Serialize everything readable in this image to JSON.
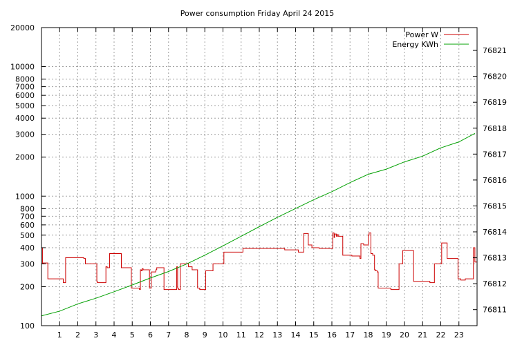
{
  "chart_data": {
    "type": "line",
    "title": "Power consumption Friday April 24 2015",
    "xlim": [
      0,
      24
    ],
    "x_ticks": [
      1,
      2,
      3,
      4,
      5,
      6,
      7,
      8,
      9,
      10,
      11,
      12,
      13,
      14,
      15,
      16,
      17,
      18,
      19,
      20,
      21,
      22,
      23
    ],
    "y_left": {
      "scale": "log",
      "lim": [
        100,
        20000
      ],
      "ticks": [
        100,
        200,
        300,
        400,
        500,
        600,
        700,
        800,
        1000,
        2000,
        3000,
        4000,
        5000,
        6000,
        7000,
        8000,
        10000,
        20000
      ]
    },
    "y_right": {
      "scale": "linear",
      "lim": [
        76810.38,
        76821.88
      ],
      "ticks": [
        76811,
        76812,
        76813,
        76814,
        76815,
        76816,
        76817,
        76818,
        76819,
        76820,
        76821
      ]
    },
    "grid": true,
    "legend_position": "top-right",
    "series": [
      {
        "name": "Power W",
        "axis": "left",
        "color": "#cc0000",
        "step": true,
        "x": [
          0,
          0.06,
          0.1,
          0.35,
          1.2,
          1.33,
          2.33,
          2.42,
          3.05,
          3.08,
          3.55,
          3.62,
          3.75,
          4.4,
          4.95,
          5.4,
          5.45,
          5.5,
          5.55,
          5.6,
          5.95,
          6.05,
          6.3,
          6.35,
          6.75,
          7.45,
          7.5,
          7.55,
          7.65,
          8.1,
          8.3,
          8.6,
          8.72,
          9.05,
          9.45,
          10.05,
          10.95,
          11.1,
          12.05,
          13.4,
          14.05,
          14.15,
          14.35,
          14.45,
          14.7,
          14.9,
          15.3,
          16.02,
          16.05,
          16.12,
          16.15,
          16.25,
          16.3,
          16.35,
          16.55,
          16.6,
          16.9,
          17.1,
          17.55,
          17.6,
          17.75,
          17.95,
          18.0,
          18.05,
          18.15,
          18.25,
          18.35,
          18.4,
          18.5,
          18.55,
          18.95,
          19.05,
          19.25,
          19.45,
          19.7,
          19.9,
          20.05,
          20.5,
          20.95,
          21.4,
          21.55,
          21.65,
          22.05,
          22.25,
          22.35,
          22.55,
          22.95,
          23.1,
          23.35,
          23.8,
          23.85,
          23.88
        ],
        "y": [
          400,
          300,
          305,
          230,
          215,
          335,
          330,
          300,
          220,
          215,
          285,
          280,
          360,
          280,
          195,
          190,
          270,
          265,
          275,
          270,
          195,
          260,
          270,
          280,
          190,
          285,
          195,
          190,
          300,
          285,
          270,
          195,
          190,
          265,
          300,
          370,
          370,
          395,
          395,
          385,
          385,
          370,
          370,
          515,
          420,
          400,
          395,
          395,
          520,
          480,
          510,
          490,
          505,
          490,
          490,
          350,
          350,
          345,
          330,
          430,
          420,
          420,
          500,
          520,
          360,
          350,
          270,
          265,
          260,
          195,
          195,
          195,
          190,
          190,
          300,
          380,
          380,
          220,
          220,
          215,
          215,
          300,
          435,
          435,
          330,
          330,
          230,
          225,
          230,
          400,
          400,
          310
        ]
      },
      {
        "name": "Energy KWh",
        "axis": "right",
        "color": "#00a000",
        "step": false,
        "x": [
          0,
          1.0,
          2.0,
          3.0,
          4.0,
          5.0,
          6.0,
          7.0,
          8.0,
          9.0,
          10.0,
          11.0,
          12.0,
          13.0,
          14.0,
          15.0,
          16.0,
          17.0,
          18.0,
          19.0,
          20.0,
          21.0,
          22.0,
          23.0,
          23.88
        ],
        "y": [
          76810.76,
          76810.94,
          76811.22,
          76811.44,
          76811.69,
          76811.95,
          76812.22,
          76812.47,
          76812.76,
          76813.1,
          76813.46,
          76813.83,
          76814.2,
          76814.56,
          76814.9,
          76815.24,
          76815.55,
          76815.9,
          76816.22,
          76816.42,
          76816.7,
          76816.92,
          76817.24,
          76817.47,
          76817.8
        ]
      }
    ]
  }
}
